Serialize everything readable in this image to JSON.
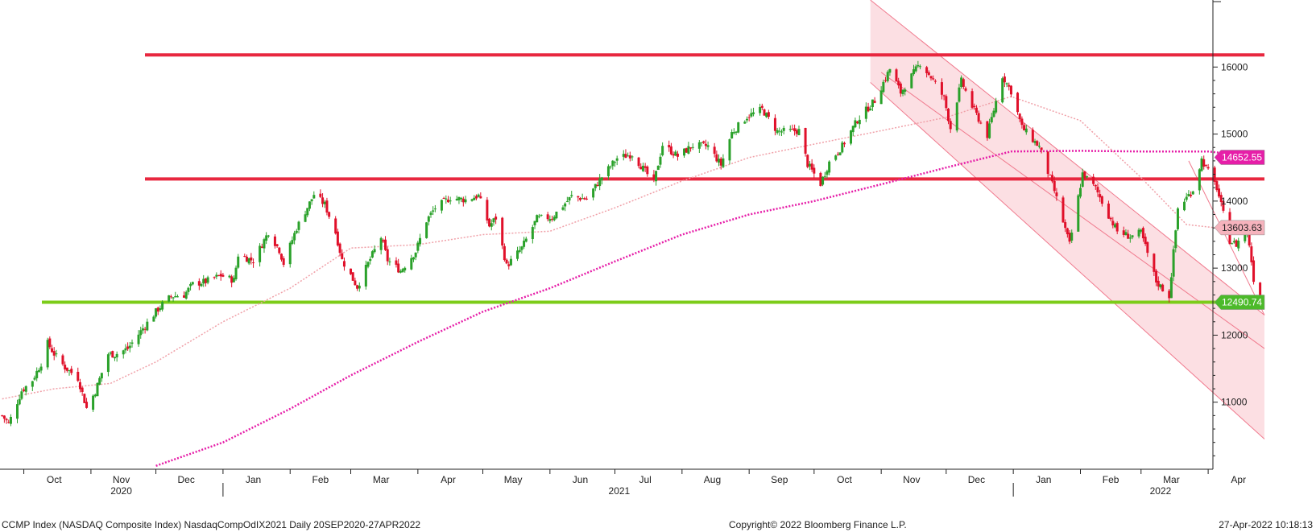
{
  "chart_data": {
    "type": "candlestick",
    "x_range": [
      "2020-09-20",
      "2022-04-27"
    ],
    "y_range": [
      10000,
      17000
    ],
    "grid": false,
    "y_ticks": [
      "11000",
      "12000",
      "13000",
      "14000",
      "15000",
      "16000"
    ],
    "month_labels": [
      "Oct",
      "Nov",
      "Dec",
      "Jan",
      "Feb",
      "Mar",
      "Apr",
      "May",
      "Jun",
      "Jul",
      "Aug",
      "Sep",
      "Oct",
      "Nov",
      "Dec",
      "Jan",
      "Feb",
      "Mar",
      "Apr"
    ],
    "year_labels": [
      "2020",
      "2021",
      "2022"
    ],
    "colors": {
      "up": "#2aa12a",
      "down": "#e0102a",
      "resistance": "#e8273f",
      "support": "#7ccc19",
      "ma_200": "#e61ea8",
      "ma_50": "#f0a0a8",
      "channel_fill": "#fcd9de",
      "channel_edge": "#f07a8e"
    },
    "horizontal_lines": [
      {
        "value": 16180,
        "color": "#e8273f"
      },
      {
        "value": 14330,
        "color": "#e8273f"
      },
      {
        "value": 12490.74,
        "color": "#7ccc19"
      }
    ],
    "value_tags": [
      {
        "label": "14652.55",
        "value": 14652.55,
        "bg": "#e61ea8",
        "fg": "#ffffff"
      },
      {
        "label": "13603.63",
        "value": 13603.63,
        "bg": "#f6b3bd",
        "fg": "#222222"
      },
      {
        "label": "12490.74",
        "value": 12490.74,
        "bg": "#4cba2a",
        "fg": "#ffffff"
      }
    ],
    "close_path": [
      [
        "2020-09-21",
        10800
      ],
      [
        "2020-09-24",
        10680
      ],
      [
        "2020-09-30",
        11170
      ],
      [
        "2020-10-05",
        11330
      ],
      [
        "2020-10-09",
        11580
      ],
      [
        "2020-10-12",
        11880
      ],
      [
        "2020-10-15",
        11720
      ],
      [
        "2020-10-20",
        11520
      ],
      [
        "2020-10-26",
        11360
      ],
      [
        "2020-10-30",
        10910
      ],
      [
        "2020-11-03",
        11160
      ],
      [
        "2020-11-09",
        11720
      ],
      [
        "2020-11-12",
        11710
      ],
      [
        "2020-11-18",
        11800
      ],
      [
        "2020-11-25",
        12100
      ],
      [
        "2020-12-01",
        12350
      ],
      [
        "2020-12-04",
        12460
      ],
      [
        "2020-12-08",
        12580
      ],
      [
        "2020-12-14",
        12600
      ],
      [
        "2020-12-18",
        12760
      ],
      [
        "2020-12-24",
        12800
      ],
      [
        "2020-12-31",
        12890
      ],
      [
        "2021-01-06",
        12820
      ],
      [
        "2021-01-08",
        13200
      ],
      [
        "2021-01-15",
        13110
      ],
      [
        "2021-01-22",
        13540
      ],
      [
        "2021-01-27",
        13270
      ],
      [
        "2021-01-29",
        13070
      ],
      [
        "2021-02-04",
        13600
      ],
      [
        "2021-02-10",
        13970
      ],
      [
        "2021-02-12",
        14100
      ],
      [
        "2021-02-17",
        13950
      ],
      [
        "2021-02-22",
        13530
      ],
      [
        "2021-02-25",
        13120
      ],
      [
        "2021-03-04",
        12720
      ],
      [
        "2021-03-09",
        13070
      ],
      [
        "2021-03-15",
        13460
      ],
      [
        "2021-03-18",
        13120
      ],
      [
        "2021-03-24",
        12960
      ],
      [
        "2021-03-31",
        13250
      ],
      [
        "2021-04-05",
        13710
      ],
      [
        "2021-04-09",
        13900
      ],
      [
        "2021-04-16",
        14050
      ],
      [
        "2021-04-23",
        14020
      ],
      [
        "2021-04-29",
        14080
      ],
      [
        "2021-05-04",
        13630
      ],
      [
        "2021-05-07",
        13750
      ],
      [
        "2021-05-12",
        13030
      ],
      [
        "2021-05-19",
        13300
      ],
      [
        "2021-05-26",
        13740
      ],
      [
        "2021-06-02",
        13760
      ],
      [
        "2021-06-11",
        14070
      ],
      [
        "2021-06-18",
        14030
      ],
      [
        "2021-06-25",
        14360
      ],
      [
        "2021-07-02",
        14640
      ],
      [
        "2021-07-09",
        14700
      ],
      [
        "2021-07-19",
        14270
      ],
      [
        "2021-07-23",
        14840
      ],
      [
        "2021-07-30",
        14670
      ],
      [
        "2021-08-06",
        14830
      ],
      [
        "2021-08-13",
        14820
      ],
      [
        "2021-08-19",
        14540
      ],
      [
        "2021-08-24",
        15020
      ],
      [
        "2021-08-31",
        15260
      ],
      [
        "2021-09-07",
        15370
      ],
      [
        "2021-09-14",
        15040
      ],
      [
        "2021-09-17",
        15040
      ],
      [
        "2021-09-24",
        15050
      ],
      [
        "2021-09-28",
        14550
      ],
      [
        "2021-10-04",
        14260
      ],
      [
        "2021-10-08",
        14580
      ],
      [
        "2021-10-14",
        14820
      ],
      [
        "2021-10-21",
        15210
      ],
      [
        "2021-10-29",
        15500
      ],
      [
        "2021-11-05",
        15970
      ],
      [
        "2021-11-10",
        15620
      ],
      [
        "2021-11-19",
        16060
      ],
      [
        "2021-11-24",
        15850
      ],
      [
        "2021-11-30",
        15540
      ],
      [
        "2021-12-03",
        15090
      ],
      [
        "2021-12-08",
        15790
      ],
      [
        "2021-12-13",
        15410
      ],
      [
        "2021-12-20",
        14980
      ],
      [
        "2021-12-27",
        15870
      ],
      [
        "2021-12-31",
        15640
      ],
      [
        "2022-01-05",
        15100
      ],
      [
        "2022-01-13",
        14810
      ],
      [
        "2022-01-20",
        14150
      ],
      [
        "2022-01-27",
        13350
      ],
      [
        "2022-02-02",
        14410
      ],
      [
        "2022-02-08",
        14190
      ],
      [
        "2022-02-14",
        13790
      ],
      [
        "2022-02-18",
        13550
      ],
      [
        "2022-02-24",
        13470
      ],
      [
        "2022-03-01",
        13530
      ],
      [
        "2022-03-08",
        12800
      ],
      [
        "2022-03-14",
        12580
      ],
      [
        "2022-03-18",
        13890
      ],
      [
        "2022-03-25",
        14170
      ],
      [
        "2022-03-29",
        14620
      ],
      [
        "2022-04-05",
        14200
      ],
      [
        "2022-04-11",
        13410
      ],
      [
        "2022-04-14",
        13350
      ],
      [
        "2022-04-19",
        13620
      ],
      [
        "2022-04-22",
        12840
      ],
      [
        "2022-04-26",
        12490.74
      ]
    ],
    "ma_50_path": [
      [
        "2020-09-21",
        11050
      ],
      [
        "2020-10-15",
        11200
      ],
      [
        "2020-11-10",
        11280
      ],
      [
        "2020-12-01",
        11600
      ],
      [
        "2021-01-01",
        12200
      ],
      [
        "2021-02-01",
        12700
      ],
      [
        "2021-03-01",
        13300
      ],
      [
        "2021-04-01",
        13350
      ],
      [
        "2021-05-01",
        13500
      ],
      [
        "2021-06-01",
        13550
      ],
      [
        "2021-07-01",
        13900
      ],
      [
        "2021-08-01",
        14300
      ],
      [
        "2021-09-01",
        14650
      ],
      [
        "2021-10-01",
        14850
      ],
      [
        "2021-11-01",
        15050
      ],
      [
        "2021-12-01",
        15250
      ],
      [
        "2021-12-31",
        15560
      ],
      [
        "2022-02-01",
        15200
      ],
      [
        "2022-03-01",
        14350
      ],
      [
        "2022-03-22",
        13650
      ],
      [
        "2022-04-05",
        13600
      ],
      [
        "2022-04-26",
        13550
      ]
    ],
    "ma_200_path": [
      [
        "2020-12-01",
        10050
      ],
      [
        "2021-01-01",
        10400
      ],
      [
        "2021-02-01",
        10900
      ],
      [
        "2021-03-01",
        11400
      ],
      [
        "2021-04-01",
        11900
      ],
      [
        "2021-05-01",
        12350
      ],
      [
        "2021-06-01",
        12700
      ],
      [
        "2021-07-01",
        13100
      ],
      [
        "2021-08-01",
        13500
      ],
      [
        "2021-09-01",
        13800
      ],
      [
        "2021-10-01",
        14000
      ],
      [
        "2021-11-01",
        14250
      ],
      [
        "2021-12-01",
        14500
      ],
      [
        "2021-12-31",
        14740
      ],
      [
        "2022-02-01",
        14750
      ],
      [
        "2022-03-01",
        14740
      ],
      [
        "2022-04-01",
        14740
      ],
      [
        "2022-04-26",
        14650
      ]
    ],
    "channels": [
      {
        "kind": "fill",
        "start": "2021-10-27",
        "end": "2022-04-27",
        "upper": [
          17000,
          12300
        ],
        "lower": [
          15770,
          10450
        ]
      },
      {
        "kind": "line",
        "start": "2021-11-01",
        "end": "2022-04-27",
        "value": [
          15920,
          11800
        ]
      },
      {
        "kind": "line",
        "start": "2022-03-23",
        "end": "2022-04-27",
        "value": [
          14600,
          12300
        ]
      }
    ]
  },
  "footer": {
    "left": "CCMP Index (NASDAQ Composite Index) NasdaqCompOdIX2021  Daily 20SEP2020-27APR2022",
    "center": "Copyright© 2022 Bloomberg Finance L.P.",
    "right": "27-Apr-2022 10:18:13"
  }
}
